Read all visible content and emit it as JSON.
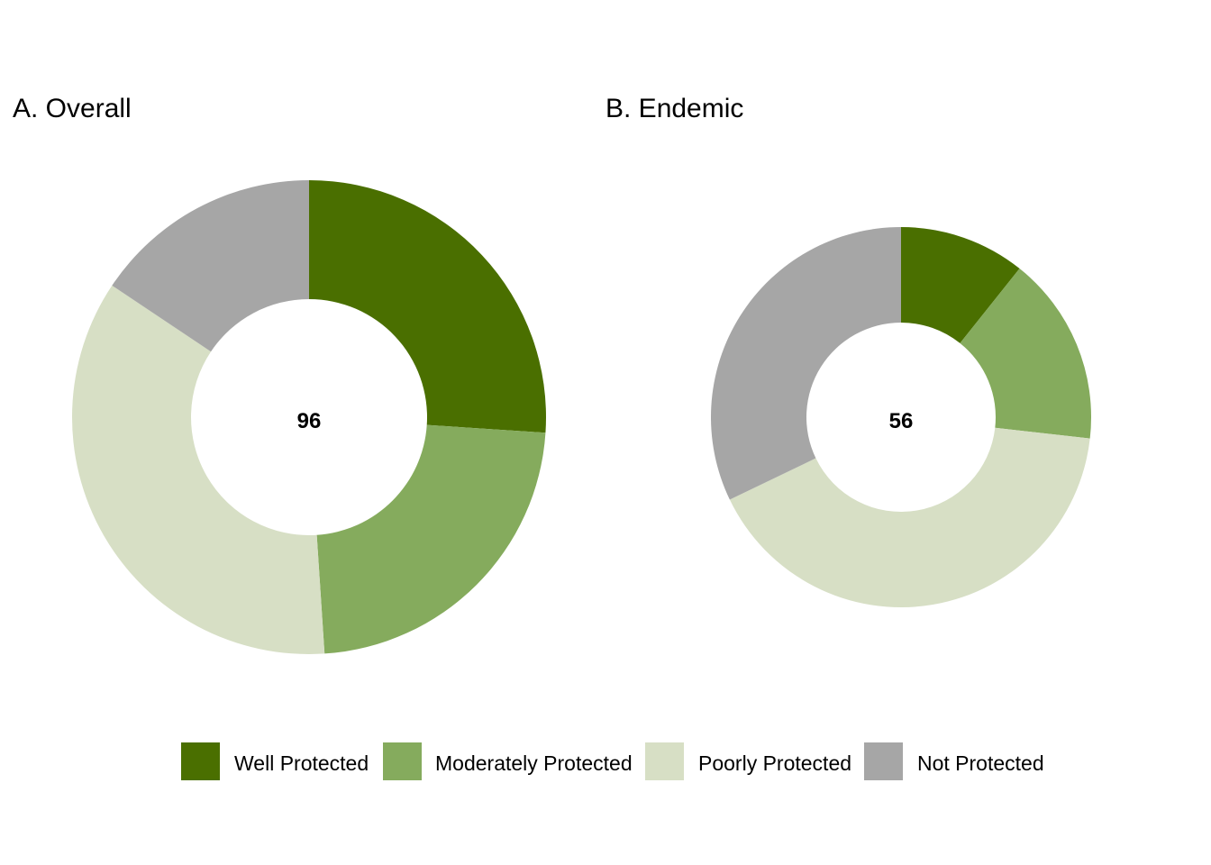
{
  "chart_data": [
    {
      "type": "pie",
      "style": "donut",
      "title": "A. Overall",
      "total_label": "96",
      "categories": [
        "Well Protected",
        "Moderately Protected",
        "Poorly Protected",
        "Not Protected"
      ],
      "values": [
        25,
        22,
        34,
        15
      ]
    },
    {
      "type": "pie",
      "style": "donut",
      "title": "B. Endemic",
      "total_label": "56",
      "categories": [
        "Well Protected",
        "Moderately Protected",
        "Poorly Protected",
        "Not Protected"
      ],
      "values": [
        6,
        9,
        23,
        18
      ]
    }
  ],
  "legend": {
    "placement": "bottom",
    "items": [
      {
        "label": "Well Protected",
        "color": "#4a6f00"
      },
      {
        "label": "Moderately Protected",
        "color": "#85ab5d"
      },
      {
        "label": "Poorly Protected",
        "color": "#d7dfc5"
      },
      {
        "label": "Not Protected",
        "color": "#a6a6a6"
      }
    ]
  }
}
